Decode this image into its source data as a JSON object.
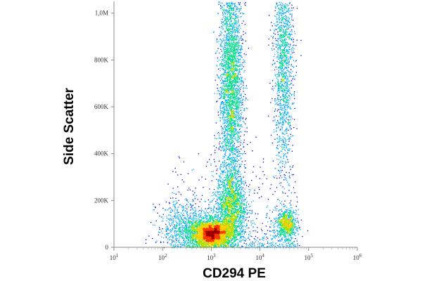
{
  "chart_data": {
    "type": "scatter",
    "xlabel": "CD294 PE",
    "ylabel": "Side Scatter",
    "x_scale": "log",
    "x_range": [
      10,
      1000000
    ],
    "y_range": [
      0,
      1050000
    ],
    "x_ticks": [
      {
        "value": 10,
        "base": "10",
        "exp": "1"
      },
      {
        "value": 100,
        "base": "10",
        "exp": "2"
      },
      {
        "value": 1000,
        "base": "10",
        "exp": "3"
      },
      {
        "value": 10000,
        "base": "10",
        "exp": "4"
      },
      {
        "value": 100000,
        "base": "10",
        "exp": "5"
      },
      {
        "value": 1000000,
        "base": "10",
        "exp": "6"
      }
    ],
    "y_ticks": [
      {
        "value": 0,
        "label": "0"
      },
      {
        "value": 200000,
        "label": "200K"
      },
      {
        "value": 400000,
        "label": "400K"
      },
      {
        "value": 600000,
        "label": "600K"
      },
      {
        "value": 800000,
        "label": "800K"
      },
      {
        "value": 1000000,
        "label": "1,0M"
      }
    ],
    "populations": [
      {
        "x_center": 1000,
        "x_spread_decades": 0.22,
        "y_center": 60000,
        "y_spread": 30000,
        "density": "high"
      },
      {
        "x_center": 2500,
        "x_spread_decades": 0.12,
        "y_center": 700000,
        "y_spread": 250000,
        "density": "high"
      },
      {
        "x_center": 30000,
        "x_spread_decades": 0.1,
        "y_center": 800000,
        "y_spread": 250000,
        "density": "medium"
      },
      {
        "x_center": 2500,
        "x_spread_decades": 0.15,
        "y_center": 180000,
        "y_spread": 80000,
        "density": "medium"
      },
      {
        "x_center": 35000,
        "x_spread_decades": 0.1,
        "y_center": 100000,
        "y_spread": 30000,
        "density": "low"
      },
      {
        "x_center": 300,
        "x_spread_decades": 0.3,
        "y_center": 90000,
        "y_spread": 60000,
        "density": "low"
      }
    ],
    "colormap": [
      "#0000cc",
      "#00aaff",
      "#00dd88",
      "#aadd00",
      "#ffcc00",
      "#ff3300",
      "#990000"
    ],
    "grid": false,
    "legend": "none"
  }
}
